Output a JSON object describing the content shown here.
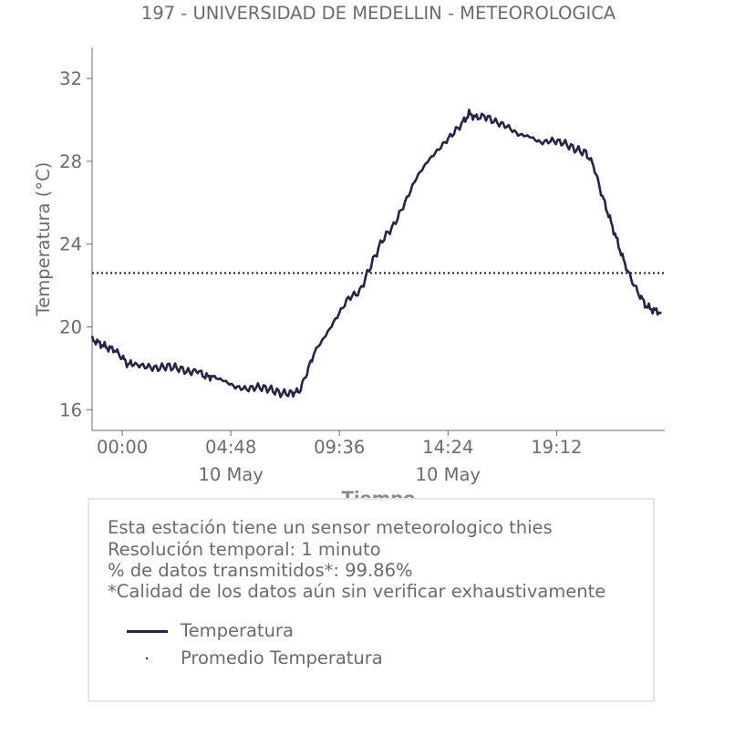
{
  "chart_data": {
    "type": "line",
    "title": "197 - UNIVERSIDAD DE MEDELLIN - METEOROLOGICA",
    "xlabel": "Tiempo",
    "ylabel": "Temperatura (°C)",
    "xlim": [
      "2023-05-09 22:40",
      "2023-05-10 23:59"
    ],
    "ylim": [
      15,
      33.5
    ],
    "x_ticks": [
      {
        "time": "00:00",
        "label": "00:00",
        "sublabel": ""
      },
      {
        "time": "04:48",
        "label": "04:48",
        "sublabel": "10 May"
      },
      {
        "time": "09:36",
        "label": "09:36",
        "sublabel": ""
      },
      {
        "time": "14:24",
        "label": "14:24",
        "sublabel": "10 May"
      },
      {
        "time": "19:12",
        "label": "19:12",
        "sublabel": ""
      }
    ],
    "y_ticks": [
      16,
      20,
      24,
      28,
      32
    ],
    "grid": false,
    "series": [
      {
        "name": "Temperatura",
        "color": "#23244a",
        "style": "solid",
        "points": [
          [
            "22:40",
            19.4
          ],
          [
            "23:00",
            19.2
          ],
          [
            "23:20",
            19.0
          ],
          [
            "23:40",
            18.9
          ],
          [
            "00:00",
            18.5
          ],
          [
            "00:15",
            18.2
          ],
          [
            "00:30",
            18.2
          ],
          [
            "01:00",
            18.1
          ],
          [
            "01:30",
            18.0
          ],
          [
            "02:00",
            18.1
          ],
          [
            "02:30",
            18.0
          ],
          [
            "03:00",
            17.8
          ],
          [
            "03:20",
            17.9
          ],
          [
            "03:40",
            17.6
          ],
          [
            "04:00",
            17.6
          ],
          [
            "04:30",
            17.4
          ],
          [
            "05:00",
            17.1
          ],
          [
            "05:30",
            17.0
          ],
          [
            "06:00",
            17.1
          ],
          [
            "06:30",
            17.0
          ],
          [
            "07:00",
            16.8
          ],
          [
            "07:30",
            16.8
          ],
          [
            "07:50",
            16.9
          ],
          [
            "08:10",
            17.8
          ],
          [
            "08:30",
            18.8
          ],
          [
            "09:00",
            19.6
          ],
          [
            "09:30",
            20.5
          ],
          [
            "10:00",
            21.4
          ],
          [
            "10:30",
            21.7
          ],
          [
            "11:00",
            23.0
          ],
          [
            "11:30",
            24.2
          ],
          [
            "12:00",
            24.9
          ],
          [
            "12:30",
            26.0
          ],
          [
            "13:00",
            27.2
          ],
          [
            "13:30",
            28.0
          ],
          [
            "14:00",
            28.6
          ],
          [
            "14:30",
            29.2
          ],
          [
            "15:00",
            29.8
          ],
          [
            "15:20",
            30.3
          ],
          [
            "15:40",
            30.1
          ],
          [
            "16:00",
            30.2
          ],
          [
            "16:30",
            29.9
          ],
          [
            "17:00",
            29.7
          ],
          [
            "17:30",
            29.3
          ],
          [
            "18:00",
            29.2
          ],
          [
            "18:30",
            28.9
          ],
          [
            "19:00",
            29.0
          ],
          [
            "19:30",
            28.9
          ],
          [
            "20:00",
            28.6
          ],
          [
            "20:30",
            28.4
          ],
          [
            "20:50",
            27.8
          ],
          [
            "21:10",
            26.5
          ],
          [
            "21:30",
            25.4
          ],
          [
            "21:50",
            24.3
          ],
          [
            "22:10",
            23.2
          ],
          [
            "22:30",
            22.3
          ],
          [
            "22:50",
            21.6
          ],
          [
            "23:10",
            21.0
          ],
          [
            "23:30",
            20.8
          ],
          [
            "23:50",
            20.7
          ]
        ]
      },
      {
        "name": "Promedio Temperatura",
        "color": "#23244a",
        "style": "dotted",
        "value": 22.6
      }
    ]
  },
  "info": {
    "lines": [
      "Esta estación tiene un sensor meteorologico thies",
      "Resolución temporal: 1 minuto",
      "% de datos transmitidos*: 99.86%",
      "*Calidad de los datos aún sin verificar exhaustivamente"
    ]
  },
  "legend": {
    "items": [
      "Temperatura",
      "Promedio Temperatura"
    ]
  }
}
